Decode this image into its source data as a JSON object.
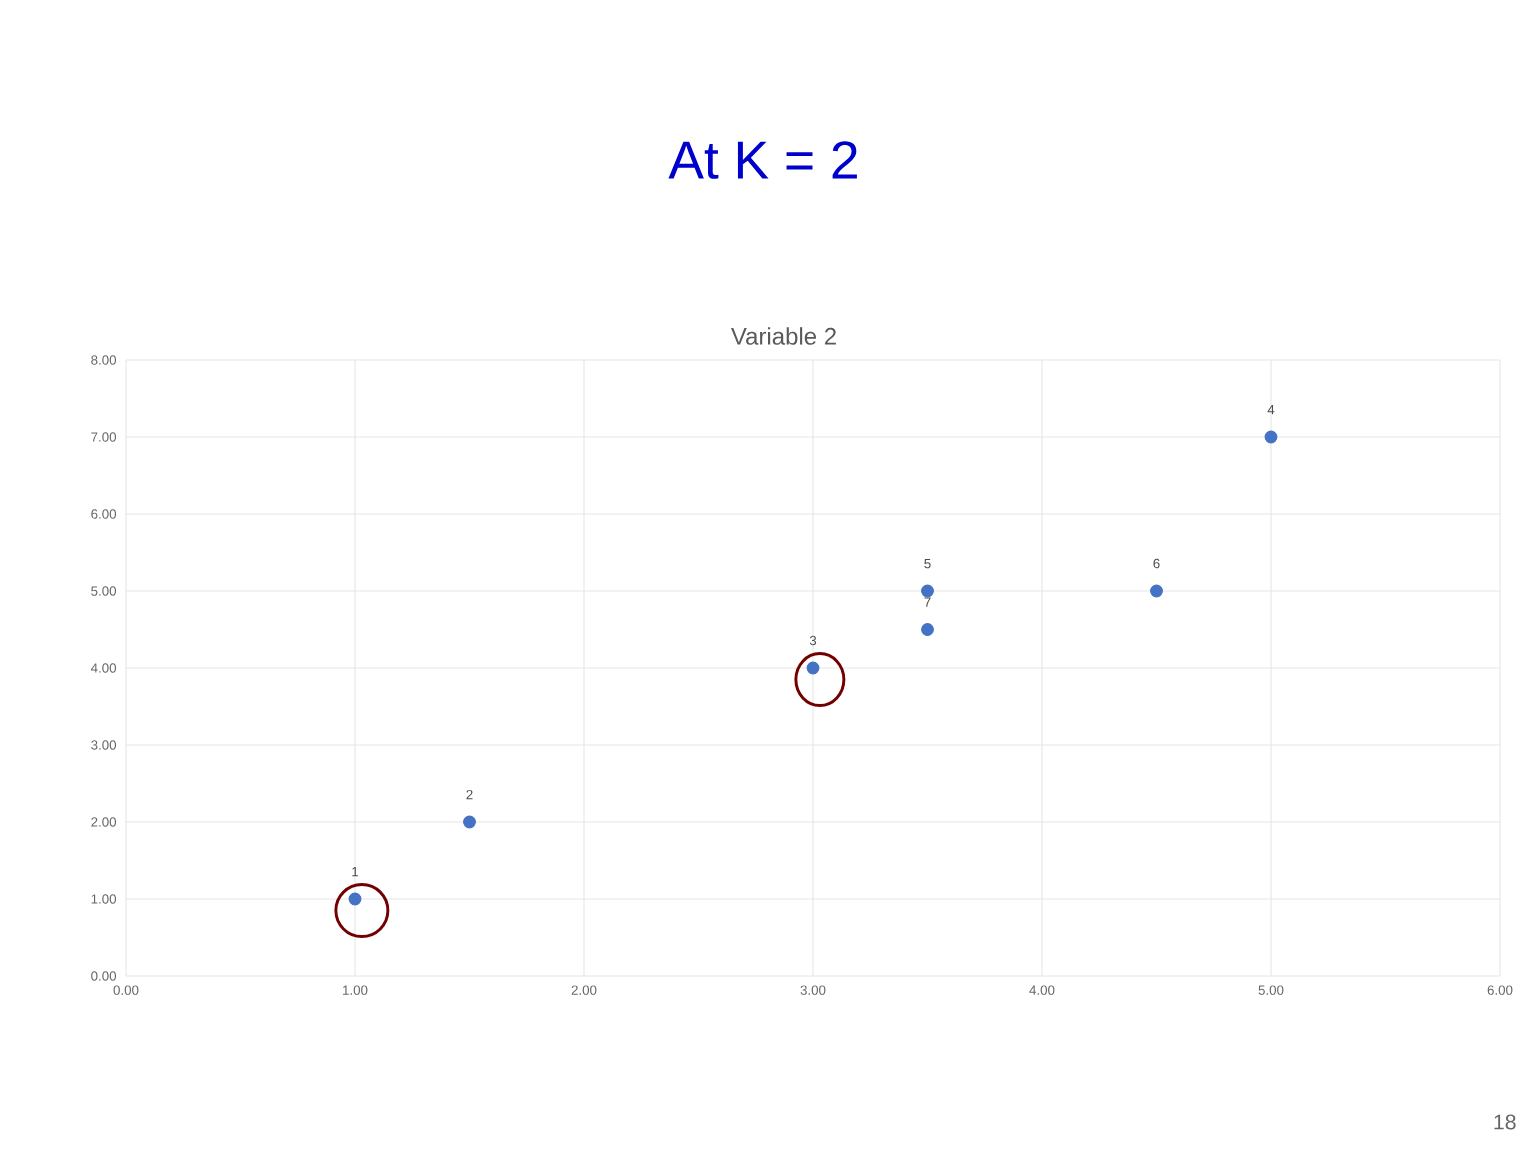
{
  "chart_data": {
    "type": "scatter",
    "title": "At K = 2",
    "subtitle": "Variable 2",
    "x": [
      1.0,
      1.5,
      3.0,
      5.0,
      3.5,
      4.5,
      3.5
    ],
    "values": [
      1.0,
      2.0,
      4.0,
      7.0,
      5.0,
      5.0,
      4.5
    ],
    "color": "#4472c4",
    "marker": "circle",
    "grid": true,
    "xlim": [
      0,
      6
    ],
    "ylim": [
      0,
      8
    ],
    "xticks": [
      {
        "value": 0,
        "label": "0.00"
      },
      {
        "value": 1,
        "label": "1.00"
      },
      {
        "value": 2,
        "label": "2.00"
      },
      {
        "value": 3,
        "label": "3.00"
      },
      {
        "value": 4,
        "label": "4.00"
      },
      {
        "value": 5,
        "label": "5.00"
      },
      {
        "value": 6,
        "label": "6.00"
      }
    ],
    "yticks": [
      {
        "value": 0,
        "label": "0.00"
      },
      {
        "value": 1,
        "label": "1.00"
      },
      {
        "value": 2,
        "label": "2.00"
      },
      {
        "value": 3,
        "label": "3.00"
      },
      {
        "value": 4,
        "label": "4.00"
      },
      {
        "value": 5,
        "label": "5.00"
      },
      {
        "value": 6,
        "label": "6.00"
      },
      {
        "value": 7,
        "label": "7.00"
      },
      {
        "value": 8,
        "label": "8.00"
      }
    ],
    "annotations": [
      {
        "text": "1",
        "x": 1.0,
        "y": 1.0
      },
      {
        "text": "2",
        "x": 1.5,
        "y": 2.0
      },
      {
        "text": "3",
        "x": 3.0,
        "y": 4.0
      },
      {
        "text": "4",
        "x": 5.0,
        "y": 7.0
      },
      {
        "text": "5",
        "x": 3.5,
        "y": 5.0
      },
      {
        "text": "6",
        "x": 4.5,
        "y": 5.0
      },
      {
        "text": "7",
        "x": 3.5,
        "y": 4.5
      },
      "18"
    ]
  }
}
